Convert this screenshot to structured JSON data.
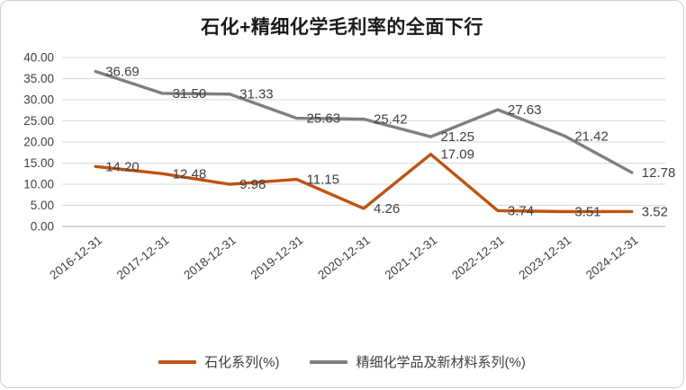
{
  "title": "石化+精细化学毛利率的全面下行",
  "chart_data": {
    "type": "line",
    "title": "石化+精细化学毛利率的全面下行",
    "categories": [
      "2016-12-31",
      "2017-12-31",
      "2018-12-31",
      "2019-12-31",
      "2020-12-31",
      "2021-12-31",
      "2022-12-31",
      "2023-12-31",
      "2024-12-31"
    ],
    "series": [
      {
        "name": "石化系列(%)",
        "color": "#BF5312",
        "values": [
          14.2,
          12.48,
          9.98,
          11.15,
          4.26,
          17.09,
          3.74,
          3.51,
          3.52
        ]
      },
      {
        "name": "精细化学品及新材料系列(%)",
        "color": "#7F7F7F",
        "values": [
          36.69,
          31.5,
          31.33,
          25.63,
          25.42,
          21.25,
          27.63,
          21.42,
          12.78
        ]
      }
    ],
    "xlabel": "",
    "ylabel": "",
    "ylim": [
      0,
      40
    ],
    "ytick_step": 5,
    "ytick_decimals": 2,
    "grid": true,
    "data_labels": true,
    "legend_position": "bottom",
    "colors": {
      "gridline": "#D9D9D9",
      "axis_line": "#BFBFBF",
      "tick_label": "#404040",
      "data_label": "#404040"
    }
  }
}
